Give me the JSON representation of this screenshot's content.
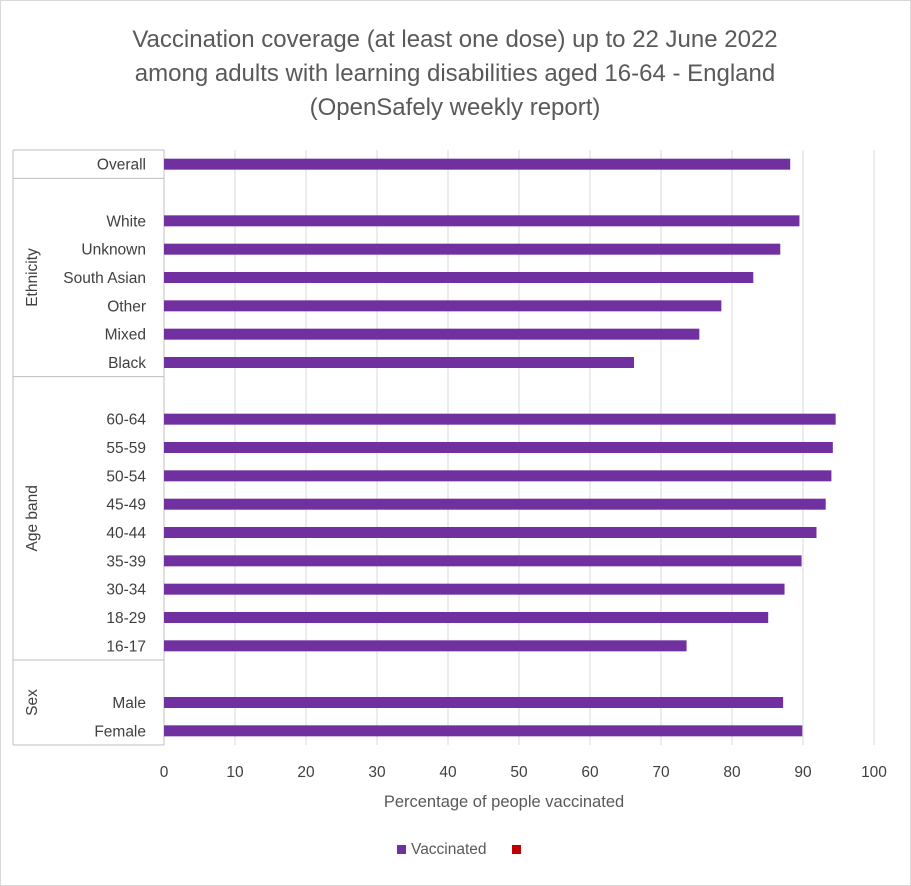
{
  "chart_data": {
    "type": "bar",
    "orientation": "horizontal",
    "title_lines": [
      "Vaccination coverage (at least one dose) up to 22 June 2022",
      "among adults with learning disabilities aged 16-64 - England",
      "(OpenSafely weekly report)"
    ],
    "xlabel": "Percentage of people vaccinated",
    "ylabel": "",
    "xlim": [
      0,
      100
    ],
    "xticks": [
      0,
      10,
      20,
      30,
      40,
      50,
      60,
      70,
      80,
      90,
      100
    ],
    "grid": true,
    "legend_position": "bottom",
    "colors": {
      "vaccinated": "#7030a0",
      "second_legend_marker": "#c00000"
    },
    "categories": [
      {
        "label": "Overall",
        "group": "",
        "value": 88.2
      },
      {
        "label": "",
        "group": "Ethnicity",
        "value": null
      },
      {
        "label": "White",
        "group": "Ethnicity",
        "value": 89.5
      },
      {
        "label": "Unknown",
        "group": "Ethnicity",
        "value": 86.8
      },
      {
        "label": "South Asian",
        "group": "Ethnicity",
        "value": 83.0
      },
      {
        "label": "Other",
        "group": "Ethnicity",
        "value": 78.5
      },
      {
        "label": "Mixed",
        "group": "Ethnicity",
        "value": 75.4
      },
      {
        "label": "Black",
        "group": "Ethnicity",
        "value": 66.2
      },
      {
        "label": "",
        "group": "Age band",
        "value": null
      },
      {
        "label": "60-64",
        "group": "Age band",
        "value": 94.6
      },
      {
        "label": "55-59",
        "group": "Age band",
        "value": 94.2
      },
      {
        "label": "50-54",
        "group": "Age band",
        "value": 94.0
      },
      {
        "label": "45-49",
        "group": "Age band",
        "value": 93.2
      },
      {
        "label": "40-44",
        "group": "Age band",
        "value": 91.9
      },
      {
        "label": "35-39",
        "group": "Age band",
        "value": 89.8
      },
      {
        "label": "30-34",
        "group": "Age band",
        "value": 87.4
      },
      {
        "label": "18-29",
        "group": "Age band",
        "value": 85.1
      },
      {
        "label": "16-17",
        "group": "Age band",
        "value": 73.6
      },
      {
        "label": "",
        "group": "Sex",
        "value": null
      },
      {
        "label": "Male",
        "group": "Sex",
        "value": 87.2
      },
      {
        "label": "Female",
        "group": "Sex",
        "value": 89.9
      }
    ],
    "groups": [
      "Ethnicity",
      "Age band",
      "Sex"
    ],
    "series": [
      {
        "name": "Vaccinated"
      }
    ],
    "legend_entries": [
      "Vaccinated",
      ""
    ]
  }
}
